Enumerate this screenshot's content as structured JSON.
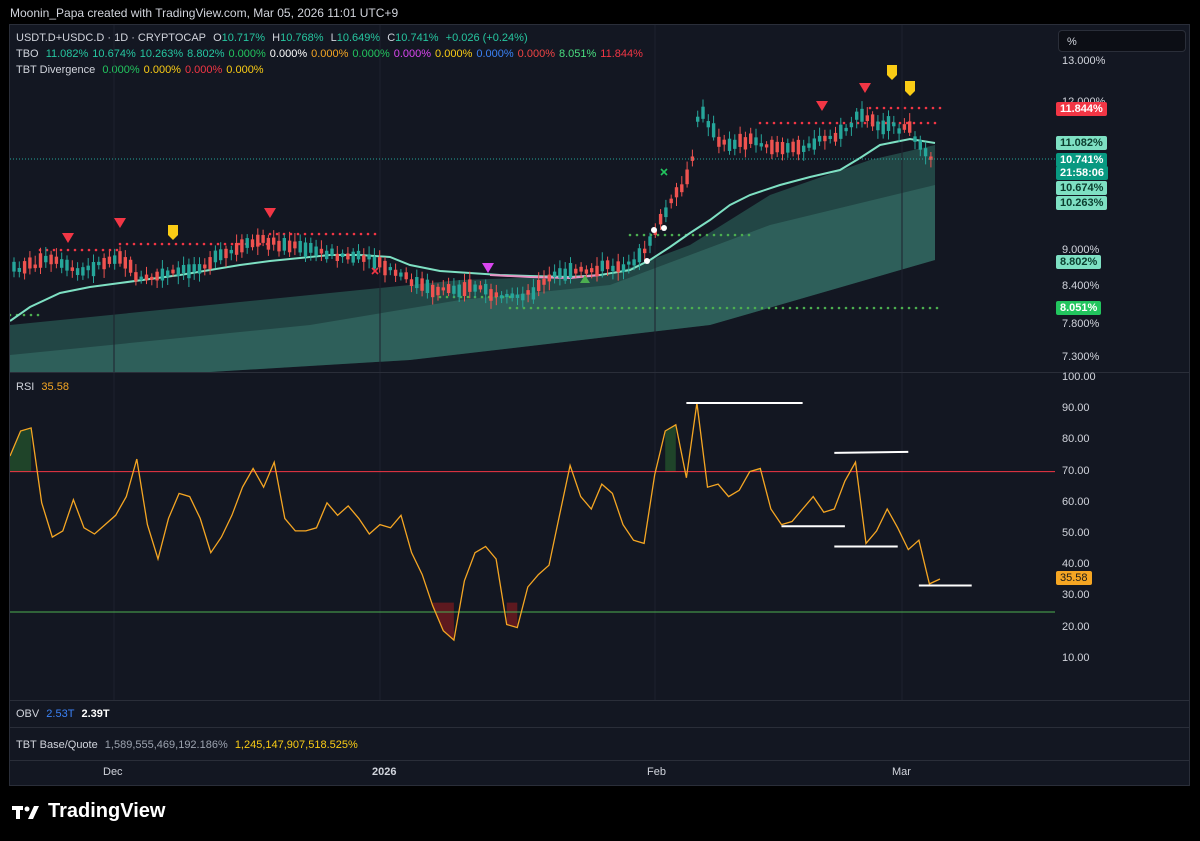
{
  "credit": "Moonin_Papa created with TradingView.com, Mar 05, 2026 11:01 UTC+9",
  "symbol_line": {
    "symbol": "USDT.D+USDC.D · 1D · CRYPTOCAP",
    "open_label": "O",
    "open": "10.717%",
    "high_label": "H",
    "high": "10.768%",
    "low_label": "L",
    "low": "10.649%",
    "close_label": "C",
    "close": "10.741%",
    "change": "+0.026 (+0.24%)"
  },
  "tbo_line": {
    "label": "TBO",
    "values": [
      {
        "v": "11.082%",
        "color": "#26c6a0"
      },
      {
        "v": "10.674%",
        "color": "#26c6a0"
      },
      {
        "v": "10.263%",
        "color": "#26c6a0"
      },
      {
        "v": "8.802%",
        "color": "#26c6a0"
      },
      {
        "v": "0.000%",
        "color": "#22c55e"
      },
      {
        "v": "0.000%",
        "color": "#ffffff"
      },
      {
        "v": "0.000%",
        "color": "#f5a623"
      },
      {
        "v": "0.000%",
        "color": "#22c55e"
      },
      {
        "v": "0.000%",
        "color": "#d946ef"
      },
      {
        "v": "0.000%",
        "color": "#facc15"
      },
      {
        "v": "0.000%",
        "color": "#3b82f6"
      },
      {
        "v": "0.000%",
        "color": "#ef4444"
      },
      {
        "v": "8.051%",
        "color": "#4ade80"
      },
      {
        "v": "11.844%",
        "color": "#f23645"
      }
    ]
  },
  "div_line": {
    "label": "TBT Divergence",
    "values": [
      {
        "v": "0.000%",
        "color": "#22c55e"
      },
      {
        "v": "0.000%",
        "color": "#facc15"
      },
      {
        "v": "0.000%",
        "color": "#f23645"
      },
      {
        "v": "0.000%",
        "color": "#facc15"
      }
    ]
  },
  "scale_button": "%",
  "price_axis": [
    "13.000%",
    "9.000%",
    "8.400%",
    "7.800%",
    "7.300%"
  ],
  "price_tags": [
    {
      "text": "11.844%",
      "bg": "#f23645",
      "fg": "#ffffff"
    },
    {
      "text": "11.082%",
      "bg": "#7ee0c3",
      "fg": "#0b3d2e"
    },
    {
      "text": "10.741%",
      "bg": "#089981",
      "fg": "#ffffff"
    },
    {
      "text": "21:58:06",
      "bg": "#089981",
      "fg": "#ffffff"
    },
    {
      "text": "10.674%",
      "bg": "#7ee0c3",
      "fg": "#0b3d2e"
    },
    {
      "text": "10.263%",
      "bg": "#7ee0c3",
      "fg": "#0b3d2e"
    },
    {
      "text": "8.802%",
      "bg": "#7ee0c3",
      "fg": "#0b3d2e"
    },
    {
      "text": "8.051%",
      "bg": "#22c55e",
      "fg": "#ffffff"
    }
  ],
  "price_axis_hidden": "12.000%",
  "rsi": {
    "label": "RSI",
    "value": "35.58",
    "axis": [
      "100.00",
      "90.00",
      "80.00",
      "70.00",
      "60.00",
      "50.00",
      "40.00",
      "30.00",
      "20.00",
      "10.00"
    ],
    "overbought": 70,
    "oversold": 25,
    "series": [
      75,
      83,
      84,
      60,
      49,
      51,
      61,
      52,
      50,
      53,
      56,
      62,
      74,
      53,
      42,
      55,
      63,
      62,
      55,
      44,
      49,
      56,
      65,
      71,
      65,
      73,
      55,
      51,
      51,
      52,
      60,
      56,
      59,
      55,
      50,
      53,
      52,
      56,
      44,
      37,
      27,
      19,
      16,
      35,
      44,
      46,
      42,
      21,
      20,
      33,
      37,
      40,
      56,
      72,
      62,
      58,
      66,
      63,
      53,
      48,
      47,
      69,
      83,
      85,
      68,
      92,
      65,
      66,
      62,
      64,
      70,
      71,
      58,
      53,
      54,
      58,
      62,
      57,
      58,
      67,
      73,
      47,
      51,
      58,
      52,
      45,
      48,
      34,
      35.58
    ],
    "div_lines": [
      {
        "i0": 64,
        "i1": 75,
        "v": 92
      },
      {
        "i0": 73,
        "i1": 79,
        "v": 52.5
      },
      {
        "i0": 78,
        "i1": 85,
        "v": 76
      },
      {
        "i0": 78,
        "i1": 84,
        "v": 46
      },
      {
        "i0": 86,
        "i1": 91,
        "v": 33.5
      }
    ]
  },
  "obv": {
    "label": "OBV",
    "v1": "2.53T",
    "v2": "2.39T"
  },
  "tbt_bq": {
    "label": "TBT Base/Quote",
    "v1": "1,589,555,469,192.186%",
    "v2": "1,245,147,907,518.525%"
  },
  "time_axis": [
    "Dec",
    "2026",
    "Feb",
    "Mar"
  ],
  "brand": "TradingView",
  "colors": {
    "up": "#26a69a",
    "down": "#ef5350",
    "ma": "#7ee0c3",
    "rsi": "#f5a623"
  }
}
